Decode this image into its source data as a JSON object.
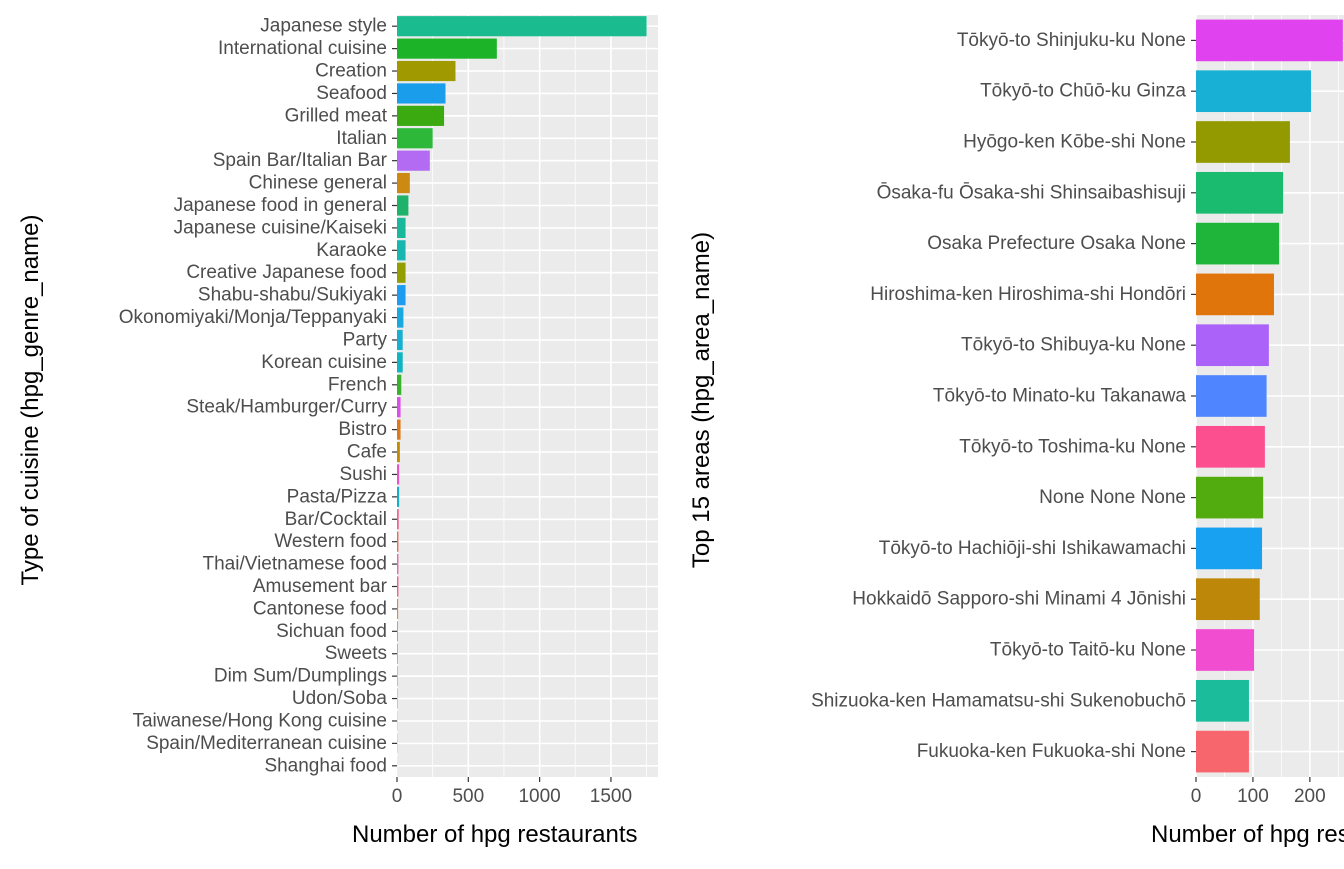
{
  "chart_data": [
    {
      "type": "bar",
      "orientation": "horizontal",
      "xlabel": "Number of hpg restaurants",
      "ylabel": "Type of cuisine (hpg_genre_name)",
      "xlim": [
        0,
        1830
      ],
      "x_ticks": [
        0,
        500,
        1000,
        1500
      ],
      "x_tick_labels": [
        "0",
        "500",
        "1000",
        "1500"
      ],
      "grid": true,
      "legend": "none",
      "categories": [
        "Japanese style",
        "International cuisine",
        "Creation",
        "Seafood",
        "Grilled meat",
        "Italian",
        "Spain Bar/Italian Bar",
        "Chinese general",
        "Japanese food in general",
        "Japanese cuisine/Kaiseki",
        "Karaoke",
        "Creative Japanese food",
        "Shabu-shabu/Sukiyaki",
        "Okonomiyaki/Monja/Teppanyaki",
        "Party",
        "Korean cuisine",
        "French",
        "Steak/Hamburger/Curry",
        "Bistro",
        "Cafe",
        "Sushi",
        "Pasta/Pizza",
        "Bar/Cocktail",
        "Western food",
        "Thai/Vietnamese food",
        "Amusement bar",
        "Cantonese food",
        "Sichuan food",
        "Sweets",
        "Dim Sum/Dumplings",
        "Udon/Soba",
        "Taiwanese/Hong Kong cuisine",
        "Spain/Mediterranean cuisine",
        "Shanghai food"
      ],
      "values": [
        1750,
        700,
        410,
        340,
        330,
        250,
        230,
        90,
        80,
        60,
        60,
        60,
        60,
        45,
        40,
        40,
        30,
        25,
        25,
        20,
        15,
        15,
        12,
        10,
        10,
        10,
        8,
        6,
        5,
        4,
        3,
        2,
        2,
        1
      ],
      "colors": [
        "#1ABC8F",
        "#1DB329",
        "#A09A00",
        "#1A9EEB",
        "#3AAA10",
        "#2DB83A",
        "#B26BF2",
        "#CC8A12",
        "#1FB26B",
        "#19B89A",
        "#17B7B0",
        "#939E00",
        "#1F9CF0",
        "#1AA9DF",
        "#18B0D1",
        "#10B5C2",
        "#38B22C",
        "#DC4FE8",
        "#DD7A1D",
        "#C08C00",
        "#E855C8",
        "#15B0C8",
        "#F06292",
        "#EB6A5A",
        "#E76BAE",
        "#F5608C",
        "#E08A3A",
        "#9E89F2",
        "#E66ABB",
        "#BDA000",
        "#4FB34A",
        "#A3A800",
        "#86AC00",
        "#F8766D"
      ]
    },
    {
      "type": "bar",
      "orientation": "horizontal",
      "xlabel": "Number of hpg restaurants",
      "ylabel": "Top 15 areas (hpg_area_name)",
      "xlim": [
        0,
        260
      ],
      "x_ticks": [
        0,
        100,
        200
      ],
      "x_tick_labels": [
        "0",
        "100",
        "200"
      ],
      "grid": true,
      "legend": "none",
      "categories": [
        "Tōkyō-to Shinjuku-ku None",
        "Tōkyō-to Chūō-ku Ginza",
        "Hyōgo-ken Kōbe-shi None",
        "Ōsaka-fu Ōsaka-shi Shinsaibashisuji",
        "Osaka Prefecture Osaka None",
        "Hiroshima-ken Hiroshima-shi Hondōri",
        "Tōkyō-to Shibuya-ku None",
        "Tōkyō-to Minato-ku Takanawa",
        "Tōkyō-to Toshima-ku None",
        "None None None",
        "Tōkyō-to Hachiōji-shi Ishikawamachi",
        "Hokkaidō Sapporo-shi Minami 4 Jōnishi",
        "Tōkyō-to Taitō-ku None",
        "Shizuoka-ken Hamamatsu-shi Sukenobuchō",
        "Fukuoka-ken Fukuoka-shi None"
      ],
      "values": [
        258,
        202,
        165,
        153,
        146,
        137,
        128,
        124,
        121,
        118,
        116,
        112,
        102,
        93,
        93
      ],
      "colors": [
        "#E042F0",
        "#18B0D4",
        "#939A00",
        "#1ABB6F",
        "#1EB53A",
        "#E0760B",
        "#AA62F8",
        "#4F86FF",
        "#FB4F8F",
        "#52AC10",
        "#18A1F0",
        "#BD880A",
        "#F04DD0",
        "#1ABC9C",
        "#F8666D"
      ]
    }
  ]
}
